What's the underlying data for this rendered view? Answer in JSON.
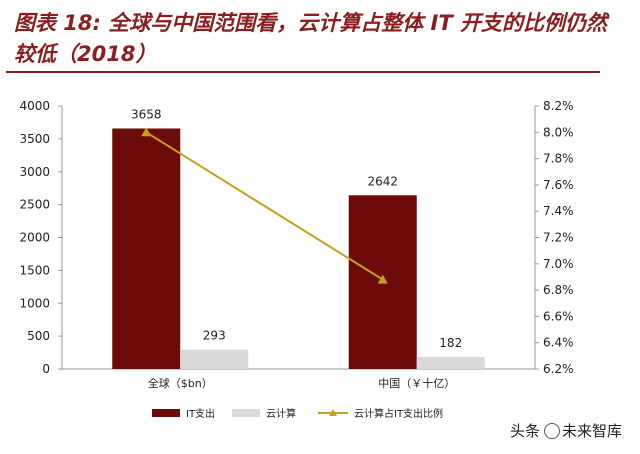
{
  "title": "图表 18: 全球与中国范围看，云计算占整体 IT 开支的比例仍然较低（2018）",
  "watermark": {
    "prefix": "头条",
    "name": "未来智库"
  },
  "colors": {
    "it": "#6d0a0a",
    "cloud": "#d9d9d9",
    "ratio": "#c4a11c",
    "title": "#8b1e1e"
  },
  "chart_data": {
    "type": "bar",
    "categories": [
      "全球（$bn）",
      "中国（￥十亿）"
    ],
    "series": [
      {
        "name": "IT支出",
        "kind": "bar",
        "axis": "left",
        "values": [
          3658,
          2642
        ],
        "labels": [
          "3658",
          "2642"
        ]
      },
      {
        "name": "云计算",
        "kind": "bar",
        "axis": "left",
        "values": [
          293,
          182
        ],
        "labels": [
          "293",
          "182"
        ]
      },
      {
        "name": "云计算占IT支出比例",
        "kind": "line",
        "axis": "right",
        "values": [
          8.0,
          6.88
        ]
      }
    ],
    "ylim": [
      0,
      4000
    ],
    "yticks": [
      "0",
      "500",
      "1000",
      "1500",
      "2000",
      "2500",
      "3000",
      "3500",
      "4000"
    ],
    "y2lim": [
      6.2,
      8.2
    ],
    "y2ticks": [
      "6.2%",
      "6.4%",
      "6.6%",
      "6.8%",
      "7.0%",
      "7.2%",
      "7.4%",
      "7.6%",
      "7.8%",
      "8.0%",
      "8.2%"
    ],
    "legend_position": "bottom"
  }
}
